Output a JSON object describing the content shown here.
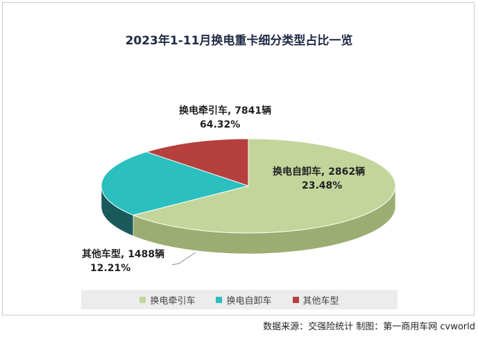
{
  "chart_data": {
    "type": "pie",
    "title": "2023年1-11月换电重卡细分类型占比一览",
    "categories": [
      "换电牵引车",
      "换电自卸车",
      "其他车型"
    ],
    "values": [
      7841,
      2862,
      1488
    ],
    "percents": [
      "64.32%",
      "23.48%",
      "12.21%"
    ],
    "value_labels": [
      "换电牵引车, 7841辆",
      "换电自卸车, 2862辆",
      "其他车型, 1488辆"
    ],
    "colors": [
      "#c3d59b",
      "#2bbfbf",
      "#b5403d"
    ],
    "side_colors": [
      "#9cad72",
      "#1a5a5c",
      "#7b2a28"
    ],
    "style": "3d",
    "legend": "bottom"
  },
  "source": "数据来源：交强险统计  制图：第一商用车网 cvworld"
}
